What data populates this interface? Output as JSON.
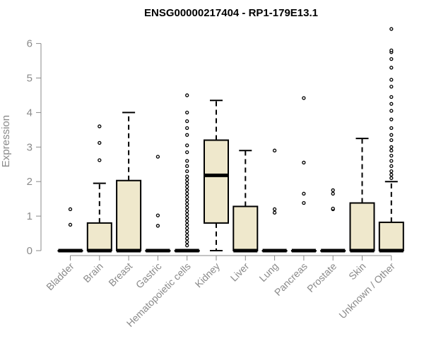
{
  "chart_data": {
    "type": "boxplot",
    "title": "ENSG00000217404 - RP1-179E13.1",
    "ylabel": "Expression",
    "xlabel": "",
    "ylim": [
      0,
      6.5
    ],
    "yticks": [
      0,
      1,
      2,
      3,
      4,
      5,
      6
    ],
    "grid": false,
    "box_fill": "#efe8cc",
    "categories": [
      "Bladder",
      "Brain",
      "Breast",
      "Gastric",
      "Hematopoietic cells",
      "Kidney",
      "Liver",
      "Lung",
      "Pancreas",
      "Prostate",
      "Skin",
      "Unknown / Other"
    ],
    "boxes": [
      {
        "q1": 0,
        "median": 0,
        "q3": 0,
        "whisker_low": 0,
        "whisker_high": 0,
        "outliers": [
          0.75,
          1.2
        ]
      },
      {
        "q1": 0,
        "median": 0,
        "q3": 0.8,
        "whisker_low": 0,
        "whisker_high": 1.95,
        "outliers": [
          2.62,
          3.12,
          3.6
        ]
      },
      {
        "q1": 0,
        "median": 0,
        "q3": 2.03,
        "whisker_low": 0,
        "whisker_high": 4.0,
        "outliers": []
      },
      {
        "q1": 0,
        "median": 0,
        "q3": 0,
        "whisker_low": 0,
        "whisker_high": 0,
        "outliers": [
          0.72,
          1.02,
          2.72
        ]
      },
      {
        "q1": 0,
        "median": 0,
        "q3": 0,
        "whisker_low": 0,
        "whisker_high": 0,
        "outliers": [
          0.15,
          0.25,
          0.35,
          0.45,
          0.55,
          0.65,
          0.75,
          0.85,
          0.95,
          1.05,
          1.15,
          1.25,
          1.35,
          1.45,
          1.55,
          1.65,
          1.75,
          1.85,
          1.95,
          2.05,
          2.15,
          2.3,
          2.45,
          2.6,
          2.85,
          3.05,
          3.35,
          3.55,
          3.75,
          4.0,
          4.5
        ]
      },
      {
        "q1": 0.8,
        "median": 2.18,
        "q3": 3.2,
        "whisker_low": 0,
        "whisker_high": 4.35,
        "outliers": []
      },
      {
        "q1": 0,
        "median": 0,
        "q3": 1.28,
        "whisker_low": 0,
        "whisker_high": 2.9,
        "outliers": []
      },
      {
        "q1": 0,
        "median": 0,
        "q3": 0,
        "whisker_low": 0,
        "whisker_high": 0,
        "outliers": [
          1.1,
          1.2,
          2.9
        ]
      },
      {
        "q1": 0,
        "median": 0,
        "q3": 0,
        "whisker_low": 0,
        "whisker_high": 0,
        "outliers": [
          1.38,
          1.65,
          2.55,
          4.42
        ]
      },
      {
        "q1": 0,
        "median": 0,
        "q3": 0,
        "whisker_low": 0,
        "whisker_high": 0,
        "outliers": [
          1.2,
          1.22,
          1.65,
          1.75
        ]
      },
      {
        "q1": 0,
        "median": 0,
        "q3": 1.38,
        "whisker_low": 0,
        "whisker_high": 3.25,
        "outliers": []
      },
      {
        "q1": 0,
        "median": 0,
        "q3": 0.82,
        "whisker_low": 0,
        "whisker_high": 2.0,
        "outliers": [
          2.1,
          2.2,
          2.3,
          2.45,
          2.6,
          2.75,
          2.9,
          3.0,
          3.2,
          3.35,
          3.55,
          3.8,
          4.05,
          4.25,
          4.45,
          4.75,
          4.95,
          5.3,
          5.55,
          5.75,
          5.8,
          6.42
        ]
      }
    ]
  }
}
